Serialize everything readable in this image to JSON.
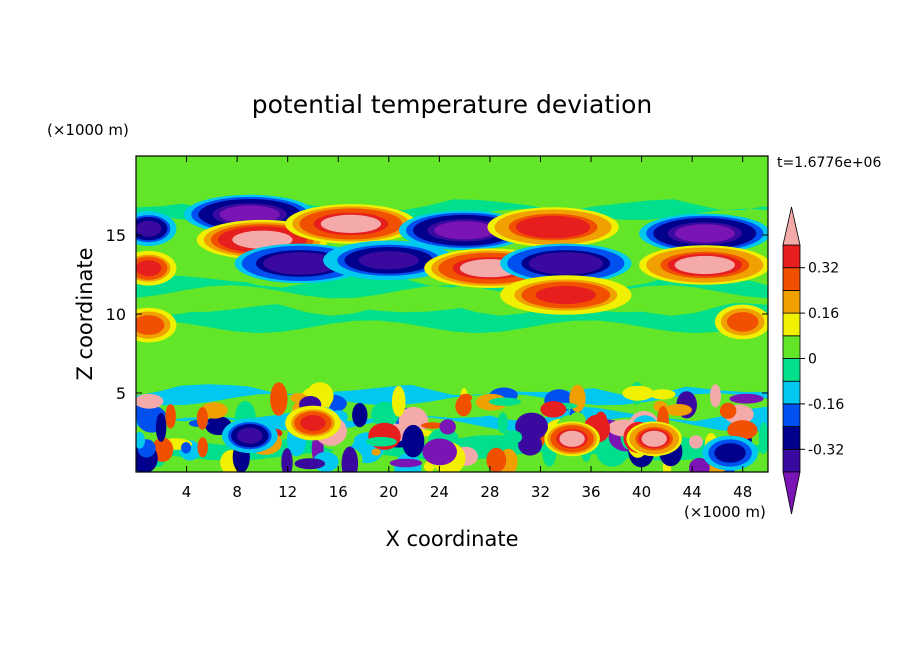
{
  "chart_data": {
    "type": "heatmap",
    "title": "potential temperature deviation",
    "xlabel": "X coordinate",
    "ylabel": "Z coordinate",
    "x_unit": "(×1000 m)",
    "y_unit": "(×1000 m)",
    "time_label": "t=1.6776e+06",
    "xlim": [
      0,
      50
    ],
    "ylim": [
      0,
      20
    ],
    "x_ticks": [
      4,
      8,
      12,
      16,
      20,
      24,
      28,
      32,
      36,
      40,
      44,
      48
    ],
    "x_tick_labels": [
      "4",
      "8",
      "12",
      "16",
      "20",
      "24",
      "28",
      "32",
      "36",
      "40",
      "44",
      "48"
    ],
    "y_ticks": [
      5,
      10,
      15
    ],
    "y_tick_labels": [
      "5",
      "10",
      "15"
    ],
    "colorbar": {
      "levels": [
        -0.4,
        -0.32,
        -0.24,
        -0.16,
        -0.08,
        0,
        0.08,
        0.16,
        0.24,
        0.32,
        0.4
      ],
      "tick_values": [
        0.32,
        0.16,
        0,
        -0.16,
        -0.32
      ],
      "tick_labels": [
        "0.32",
        "0.16",
        "0",
        "-0.16",
        "-0.32"
      ],
      "colors": [
        "#3a0aa0",
        "#00008c",
        "#0050f0",
        "#00c8f0",
        "#00e08c",
        "#64e628",
        "#f0f000",
        "#f0a000",
        "#f05000",
        "#e61e1e"
      ],
      "under_color": "#7a14b4",
      "over_color": "#f5aaaa"
    },
    "features": [
      {
        "x": 9,
        "z": 16.3,
        "value": -0.45
      },
      {
        "x": 10,
        "z": 14.7,
        "value": 0.45
      },
      {
        "x": 13,
        "z": 13.2,
        "value": -0.38
      },
      {
        "x": 17,
        "z": 15.7,
        "value": 0.42
      },
      {
        "x": 20,
        "z": 13.4,
        "value": -0.36
      },
      {
        "x": 26,
        "z": 15.3,
        "value": -0.45
      },
      {
        "x": 28,
        "z": 12.9,
        "value": 0.42
      },
      {
        "x": 33,
        "z": 15.5,
        "value": 0.38
      },
      {
        "x": 34,
        "z": 13.2,
        "value": -0.4
      },
      {
        "x": 34,
        "z": 11.2,
        "value": 0.36
      },
      {
        "x": 45,
        "z": 15.1,
        "value": -0.45
      },
      {
        "x": 45,
        "z": 13.1,
        "value": 0.4
      },
      {
        "x": 1,
        "z": 12.9,
        "value": 0.34
      },
      {
        "x": 1,
        "z": 15.4,
        "value": -0.36
      },
      {
        "x": 48,
        "z": 9.5,
        "value": 0.3
      },
      {
        "x": 1,
        "z": 9.3,
        "value": 0.3
      },
      {
        "x": 9,
        "z": 2.3,
        "value": -0.34
      },
      {
        "x": 14,
        "z": 3.1,
        "value": 0.36
      },
      {
        "x": 34.5,
        "z": 2.1,
        "value": 0.42
      },
      {
        "x": 41,
        "z": 2.1,
        "value": 0.4
      },
      {
        "x": 47,
        "z": 1.2,
        "value": -0.3
      }
    ]
  }
}
